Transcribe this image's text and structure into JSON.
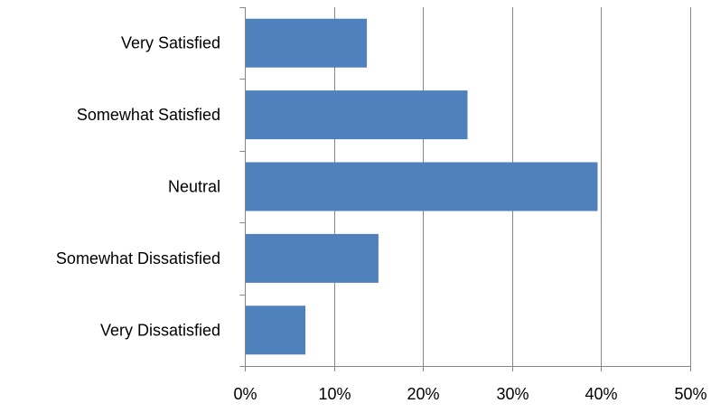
{
  "chart_data": {
    "type": "bar",
    "orientation": "horizontal",
    "categories": [
      "Very Satisfied",
      "Somewhat Satisfied",
      "Neutral",
      "Somewhat Dissatisfied",
      "Very Dissatisfied"
    ],
    "values": [
      13.7,
      25.0,
      39.6,
      15.0,
      6.8
    ],
    "x_ticks": [
      "0%",
      "10%",
      "20%",
      "30%",
      "40%",
      "50%"
    ],
    "xlim": [
      0,
      50
    ],
    "value_unit": "%",
    "bar_color": "#4f81bd",
    "grid": true,
    "grid_color": "#868686",
    "axis_color": "#868686",
    "legend": "none"
  }
}
